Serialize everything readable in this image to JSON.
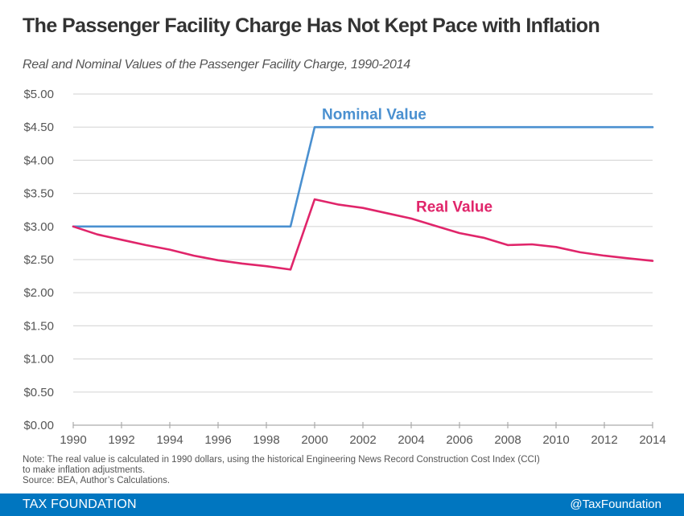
{
  "header": {
    "title": "The Passenger Facility Charge Has Not Kept Pace with Inflation",
    "subtitle": "Real and Nominal Values of the Passenger Facility Charge, 1990-2014"
  },
  "chart_data": {
    "type": "line",
    "title": "The Passenger Facility Charge Has Not Kept Pace with Inflation",
    "subtitle": "Real and Nominal Values of the Passenger Facility Charge, 1990-2014",
    "xlabel": "",
    "ylabel": "",
    "x": [
      1990,
      1991,
      1992,
      1993,
      1994,
      1995,
      1996,
      1997,
      1998,
      1999,
      2000,
      2001,
      2002,
      2003,
      2004,
      2005,
      2006,
      2007,
      2008,
      2009,
      2010,
      2011,
      2012,
      2013,
      2014
    ],
    "xlim": [
      1990,
      2014
    ],
    "ylim": [
      0,
      5
    ],
    "x_ticks": [
      "1990",
      "1992",
      "1994",
      "1996",
      "1998",
      "2000",
      "2002",
      "2004",
      "2006",
      "2008",
      "2010",
      "2012",
      "2014"
    ],
    "x_tick_values": [
      1990,
      1992,
      1994,
      1996,
      1998,
      2000,
      2002,
      2004,
      2006,
      2008,
      2010,
      2012,
      2014
    ],
    "y_ticks": [
      "$0.00",
      "$0.50",
      "$1.00",
      "$1.50",
      "$2.00",
      "$2.50",
      "$3.00",
      "$3.50",
      "$4.00",
      "$4.50",
      "$5.00"
    ],
    "y_tick_values": [
      0,
      0.5,
      1,
      1.5,
      2,
      2.5,
      3,
      3.5,
      4,
      4.5,
      5
    ],
    "grid": true,
    "legend": "inline labels",
    "series": [
      {
        "name": "Nominal Value",
        "color": "#4a90d0",
        "label_anchor": {
          "x": 2000.3,
          "y": 4.62
        },
        "values": [
          3.0,
          3.0,
          3.0,
          3.0,
          3.0,
          3.0,
          3.0,
          3.0,
          3.0,
          3.0,
          4.5,
          4.5,
          4.5,
          4.5,
          4.5,
          4.5,
          4.5,
          4.5,
          4.5,
          4.5,
          4.5,
          4.5,
          4.5,
          4.5,
          4.5
        ]
      },
      {
        "name": "Real Value",
        "color": "#e0256a",
        "label_anchor": {
          "x": 2004.2,
          "y": 3.22
        },
        "values": [
          3.0,
          2.88,
          2.8,
          2.72,
          2.65,
          2.56,
          2.49,
          2.44,
          2.4,
          2.35,
          3.41,
          3.33,
          3.28,
          3.2,
          3.12,
          3.01,
          2.9,
          2.83,
          2.72,
          2.73,
          2.69,
          2.61,
          2.56,
          2.52,
          2.48
        ]
      }
    ]
  },
  "notes": {
    "line1": "Note: The real value is calculated in 1990 dollars, using the historical Engineering News Record Construction Cost Index (CCI)",
    "line2": "to make inflation adjustments.",
    "line3": "Source: BEA, Author’s Calculations."
  },
  "footer": {
    "brand": "TAX FOUNDATION",
    "handle": "@TaxFoundation",
    "color": "#0076c0"
  }
}
